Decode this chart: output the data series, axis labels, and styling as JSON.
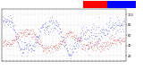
{
  "background_color": "#ffffff",
  "humidity_color": "#0000cc",
  "temp_color": "#cc0000",
  "legend_red_color": "#ff0000",
  "legend_blue_color": "#0000ff",
  "grid_color": "#cccccc",
  "ylim": [
    10,
    110
  ],
  "yticks": [
    20,
    40,
    60,
    80,
    100
  ],
  "n_points": 400,
  "seed": 7,
  "dot_size": 0.4,
  "figsize": [
    1.6,
    0.87
  ],
  "dpi": 100
}
